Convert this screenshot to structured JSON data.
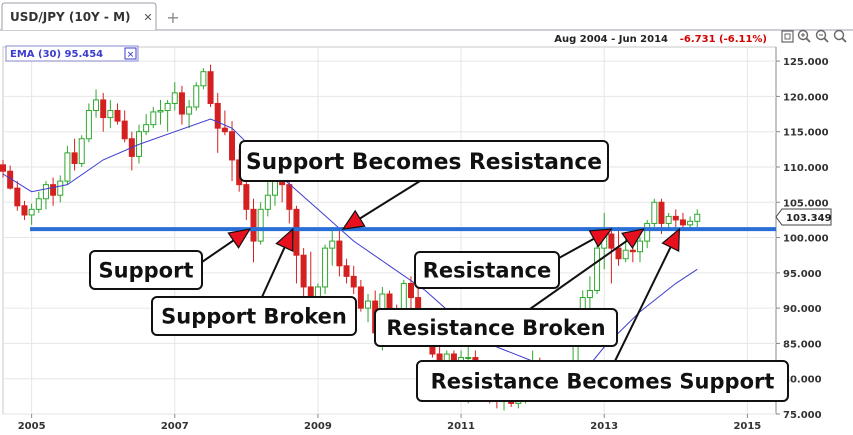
{
  "tab": {
    "label": "USD/JPY (10Y - M)",
    "close_glyph": "✕",
    "add_glyph": "+"
  },
  "header": {
    "range": "Aug 2004 - Jun 2014",
    "change": "-6.731 (-6.11%)"
  },
  "indicator": {
    "label": "EMA (30) 95.454",
    "close_glyph": "✕"
  },
  "toolbar": {
    "icons": [
      "maximize-icon",
      "zoom-in-icon",
      "zoom-out-icon",
      "zoom-reset-icon"
    ]
  },
  "colors": {
    "up": "#2ea82e",
    "down": "#d42020",
    "ema": "#3c3cd0",
    "level": "#2a6fd8",
    "arrow": "#e8101e",
    "change": "#d40000"
  },
  "chart_data": {
    "type": "candlestick",
    "x_tick_labels": [
      "2005",
      "2007",
      "2009",
      "2011",
      "2013",
      "2015"
    ],
    "y_tick_labels": [
      "125.000",
      "120.000",
      "115.000",
      "110.000",
      "105.000",
      "100.000",
      "95.000",
      "90.000",
      "85.000",
      "80.000",
      "75.000"
    ],
    "ylim": [
      75,
      127
    ],
    "xlim": [
      2004.6,
      2015.4
    ],
    "last_price": "103.349",
    "support_resistance_level": 101.2,
    "ema_period": 30,
    "ema_value": 95.454,
    "candles": [
      {
        "t": 2004.6,
        "o": 110.3,
        "h": 111.0,
        "l": 108.5,
        "c": 109.4
      },
      {
        "t": 2004.7,
        "o": 109.4,
        "h": 110.2,
        "l": 106.8,
        "c": 107.0
      },
      {
        "t": 2004.8,
        "o": 107.0,
        "h": 108.0,
        "l": 103.8,
        "c": 104.5
      },
      {
        "t": 2004.9,
        "o": 104.5,
        "h": 105.2,
        "l": 102.5,
        "c": 103.2
      },
      {
        "t": 2005.0,
        "o": 103.2,
        "h": 104.8,
        "l": 101.8,
        "c": 104.0
      },
      {
        "t": 2005.1,
        "o": 104.0,
        "h": 106.5,
        "l": 103.5,
        "c": 105.5
      },
      {
        "t": 2005.2,
        "o": 105.5,
        "h": 108.0,
        "l": 104.0,
        "c": 107.5
      },
      {
        "t": 2005.3,
        "o": 107.5,
        "h": 108.5,
        "l": 104.5,
        "c": 106.0
      },
      {
        "t": 2005.4,
        "o": 106.0,
        "h": 108.8,
        "l": 105.0,
        "c": 108.0
      },
      {
        "t": 2005.5,
        "o": 108.0,
        "h": 113.0,
        "l": 107.5,
        "c": 112.0
      },
      {
        "t": 2005.6,
        "o": 112.0,
        "h": 114.0,
        "l": 109.5,
        "c": 110.5
      },
      {
        "t": 2005.7,
        "o": 110.5,
        "h": 114.5,
        "l": 110.0,
        "c": 114.0
      },
      {
        "t": 2005.8,
        "o": 114.0,
        "h": 119.0,
        "l": 113.5,
        "c": 118.0
      },
      {
        "t": 2005.9,
        "o": 118.0,
        "h": 121.0,
        "l": 117.0,
        "c": 119.5
      },
      {
        "t": 2006.0,
        "o": 119.5,
        "h": 120.5,
        "l": 115.0,
        "c": 117.0
      },
      {
        "t": 2006.1,
        "o": 117.0,
        "h": 119.5,
        "l": 115.5,
        "c": 118.0
      },
      {
        "t": 2006.2,
        "o": 118.0,
        "h": 119.0,
        "l": 116.0,
        "c": 116.5
      },
      {
        "t": 2006.3,
        "o": 116.5,
        "h": 118.0,
        "l": 113.5,
        "c": 114.0
      },
      {
        "t": 2006.4,
        "o": 114.0,
        "h": 115.0,
        "l": 109.5,
        "c": 111.5
      },
      {
        "t": 2006.5,
        "o": 111.5,
        "h": 116.0,
        "l": 110.5,
        "c": 115.0
      },
      {
        "t": 2006.6,
        "o": 115.0,
        "h": 117.5,
        "l": 114.5,
        "c": 116.0
      },
      {
        "t": 2006.7,
        "o": 116.0,
        "h": 118.5,
        "l": 115.5,
        "c": 117.8
      },
      {
        "t": 2006.8,
        "o": 117.8,
        "h": 119.5,
        "l": 116.0,
        "c": 118.0
      },
      {
        "t": 2006.9,
        "o": 118.0,
        "h": 119.5,
        "l": 115.0,
        "c": 119.0
      },
      {
        "t": 2007.0,
        "o": 119.0,
        "h": 122.0,
        "l": 118.0,
        "c": 120.5
      },
      {
        "t": 2007.1,
        "o": 120.5,
        "h": 121.5,
        "l": 116.0,
        "c": 117.5
      },
      {
        "t": 2007.2,
        "o": 117.5,
        "h": 119.5,
        "l": 115.5,
        "c": 118.5
      },
      {
        "t": 2007.3,
        "o": 118.5,
        "h": 122.0,
        "l": 118.0,
        "c": 121.5
      },
      {
        "t": 2007.4,
        "o": 121.5,
        "h": 124.0,
        "l": 121.0,
        "c": 123.5
      },
      {
        "t": 2007.5,
        "o": 123.5,
        "h": 124.5,
        "l": 118.5,
        "c": 119.0
      },
      {
        "t": 2007.6,
        "o": 119.0,
        "h": 120.5,
        "l": 112.0,
        "c": 115.5
      },
      {
        "t": 2007.7,
        "o": 115.5,
        "h": 118.0,
        "l": 114.5,
        "c": 115.0
      },
      {
        "t": 2007.8,
        "o": 115.0,
        "h": 116.5,
        "l": 108.0,
        "c": 111.0
      },
      {
        "t": 2007.9,
        "o": 111.0,
        "h": 112.5,
        "l": 106.5,
        "c": 107.5
      },
      {
        "t": 2008.0,
        "o": 107.5,
        "h": 108.5,
        "l": 102.5,
        "c": 104.0
      },
      {
        "t": 2008.1,
        "o": 104.0,
        "h": 105.5,
        "l": 96.5,
        "c": 99.5
      },
      {
        "t": 2008.2,
        "o": 99.5,
        "h": 105.0,
        "l": 99.0,
        "c": 104.0
      },
      {
        "t": 2008.3,
        "o": 104.0,
        "h": 108.5,
        "l": 103.0,
        "c": 106.0
      },
      {
        "t": 2008.4,
        "o": 106.0,
        "h": 108.5,
        "l": 104.5,
        "c": 108.0
      },
      {
        "t": 2008.5,
        "o": 108.0,
        "h": 110.5,
        "l": 105.0,
        "c": 107.5
      },
      {
        "t": 2008.6,
        "o": 107.5,
        "h": 108.5,
        "l": 102.0,
        "c": 104.0
      },
      {
        "t": 2008.7,
        "o": 104.0,
        "h": 104.5,
        "l": 93.5,
        "c": 97.5
      },
      {
        "t": 2008.8,
        "o": 97.5,
        "h": 98.5,
        "l": 87.0,
        "c": 93.0
      },
      {
        "t": 2008.9,
        "o": 93.0,
        "h": 98.0,
        "l": 89.5,
        "c": 90.8
      },
      {
        "t": 2009.0,
        "o": 90.8,
        "h": 93.5,
        "l": 87.5,
        "c": 93.0
      },
      {
        "t": 2009.1,
        "o": 93.0,
        "h": 99.0,
        "l": 92.0,
        "c": 98.5
      },
      {
        "t": 2009.2,
        "o": 98.5,
        "h": 101.5,
        "l": 96.0,
        "c": 99.5
      },
      {
        "t": 2009.3,
        "o": 99.5,
        "h": 101.0,
        "l": 94.5,
        "c": 96.0
      },
      {
        "t": 2009.4,
        "o": 96.0,
        "h": 97.0,
        "l": 93.5,
        "c": 94.5
      },
      {
        "t": 2009.5,
        "o": 94.5,
        "h": 96.0,
        "l": 92.0,
        "c": 93.0
      },
      {
        "t": 2009.6,
        "o": 93.0,
        "h": 94.0,
        "l": 89.5,
        "c": 90.0
      },
      {
        "t": 2009.7,
        "o": 90.0,
        "h": 92.0,
        "l": 88.0,
        "c": 91.0
      },
      {
        "t": 2009.8,
        "o": 91.0,
        "h": 92.5,
        "l": 86.0,
        "c": 86.5
      },
      {
        "t": 2009.9,
        "o": 86.5,
        "h": 93.0,
        "l": 84.0,
        "c": 92.0
      },
      {
        "t": 2010.0,
        "o": 92.0,
        "h": 92.5,
        "l": 88.0,
        "c": 89.5
      },
      {
        "t": 2010.1,
        "o": 89.5,
        "h": 90.5,
        "l": 88.0,
        "c": 89.0
      },
      {
        "t": 2010.2,
        "o": 89.0,
        "h": 94.0,
        "l": 88.5,
        "c": 93.5
      },
      {
        "t": 2010.3,
        "o": 93.5,
        "h": 94.5,
        "l": 89.0,
        "c": 91.5
      },
      {
        "t": 2010.4,
        "o": 91.5,
        "h": 93.5,
        "l": 87.5,
        "c": 88.5
      },
      {
        "t": 2010.5,
        "o": 88.5,
        "h": 89.0,
        "l": 84.5,
        "c": 85.5
      },
      {
        "t": 2010.6,
        "o": 85.5,
        "h": 86.5,
        "l": 83.0,
        "c": 83.5
      },
      {
        "t": 2010.7,
        "o": 83.5,
        "h": 84.5,
        "l": 81.5,
        "c": 82.0
      },
      {
        "t": 2010.8,
        "o": 82.0,
        "h": 84.0,
        "l": 80.5,
        "c": 83.5
      },
      {
        "t": 2010.9,
        "o": 83.5,
        "h": 84.0,
        "l": 81.5,
        "c": 82.5
      },
      {
        "t": 2011.0,
        "o": 82.5,
        "h": 84.0,
        "l": 81.0,
        "c": 83.0
      },
      {
        "t": 2011.1,
        "o": 83.0,
        "h": 85.5,
        "l": 76.5,
        "c": 83.0
      },
      {
        "t": 2011.2,
        "o": 83.0,
        "h": 84.0,
        "l": 80.5,
        "c": 81.5
      },
      {
        "t": 2011.3,
        "o": 81.5,
        "h": 82.0,
        "l": 79.5,
        "c": 80.5
      },
      {
        "t": 2011.4,
        "o": 80.5,
        "h": 81.0,
        "l": 76.5,
        "c": 77.0
      },
      {
        "t": 2011.5,
        "o": 77.0,
        "h": 78.0,
        "l": 75.8,
        "c": 76.8
      },
      {
        "t": 2011.6,
        "o": 76.8,
        "h": 78.5,
        "l": 75.5,
        "c": 77.5
      },
      {
        "t": 2011.7,
        "o": 77.5,
        "h": 78.5,
        "l": 76.0,
        "c": 76.5
      },
      {
        "t": 2011.8,
        "o": 76.5,
        "h": 77.5,
        "l": 75.8,
        "c": 77.0
      },
      {
        "t": 2011.9,
        "o": 77.0,
        "h": 81.5,
        "l": 76.5,
        "c": 81.0
      },
      {
        "t": 2012.0,
        "o": 81.0,
        "h": 84.0,
        "l": 80.0,
        "c": 82.5
      },
      {
        "t": 2012.1,
        "o": 82.5,
        "h": 83.0,
        "l": 79.5,
        "c": 80.0
      },
      {
        "t": 2012.2,
        "o": 80.0,
        "h": 80.5,
        "l": 77.5,
        "c": 78.5
      },
      {
        "t": 2012.3,
        "o": 78.5,
        "h": 80.0,
        "l": 77.0,
        "c": 78.0
      },
      {
        "t": 2012.4,
        "o": 78.0,
        "h": 80.0,
        "l": 77.5,
        "c": 79.5
      },
      {
        "t": 2012.5,
        "o": 79.5,
        "h": 82.5,
        "l": 79.0,
        "c": 82.0
      },
      {
        "t": 2012.6,
        "o": 82.0,
        "h": 86.5,
        "l": 81.5,
        "c": 86.5
      },
      {
        "t": 2012.7,
        "o": 86.5,
        "h": 92.5,
        "l": 86.0,
        "c": 91.5
      },
      {
        "t": 2012.8,
        "o": 91.5,
        "h": 94.5,
        "l": 90.0,
        "c": 92.5
      },
      {
        "t": 2012.9,
        "o": 92.5,
        "h": 99.5,
        "l": 92.0,
        "c": 98.5
      },
      {
        "t": 2013.0,
        "o": 98.5,
        "h": 103.5,
        "l": 95.5,
        "c": 100.5
      },
      {
        "t": 2013.1,
        "o": 100.5,
        "h": 101.5,
        "l": 93.5,
        "c": 98.5
      },
      {
        "t": 2013.2,
        "o": 98.5,
        "h": 101.5,
        "l": 96.0,
        "c": 97.0
      },
      {
        "t": 2013.3,
        "o": 97.0,
        "h": 100.5,
        "l": 96.5,
        "c": 98.2
      },
      {
        "t": 2013.4,
        "o": 98.2,
        "h": 101.0,
        "l": 96.5,
        "c": 98.0
      },
      {
        "t": 2013.5,
        "o": 98.0,
        "h": 100.0,
        "l": 96.5,
        "c": 99.5
      },
      {
        "t": 2013.6,
        "o": 99.5,
        "h": 102.5,
        "l": 98.5,
        "c": 102.0
      },
      {
        "t": 2013.7,
        "o": 102.0,
        "h": 105.5,
        "l": 101.5,
        "c": 105.0
      },
      {
        "t": 2013.8,
        "o": 105.0,
        "h": 105.5,
        "l": 100.5,
        "c": 102.0
      },
      {
        "t": 2013.9,
        "o": 102.0,
        "h": 103.5,
        "l": 101.0,
        "c": 103.0
      },
      {
        "t": 2014.0,
        "o": 103.0,
        "h": 104.0,
        "l": 101.5,
        "c": 102.5
      },
      {
        "t": 2014.1,
        "o": 102.5,
        "h": 103.5,
        "l": 101.0,
        "c": 101.8
      },
      {
        "t": 2014.2,
        "o": 101.8,
        "h": 103.0,
        "l": 101.0,
        "c": 102.3
      },
      {
        "t": 2014.3,
        "o": 102.3,
        "h": 104.0,
        "l": 101.5,
        "c": 103.3
      }
    ],
    "ema": [
      {
        "t": 2004.6,
        "v": 109.0
      },
      {
        "t": 2005.0,
        "v": 106.5
      },
      {
        "t": 2005.5,
        "v": 107.5
      },
      {
        "t": 2006.0,
        "v": 111.0
      },
      {
        "t": 2006.5,
        "v": 113.2
      },
      {
        "t": 2007.0,
        "v": 115.0
      },
      {
        "t": 2007.5,
        "v": 116.8
      },
      {
        "t": 2007.8,
        "v": 115.5
      },
      {
        "t": 2008.0,
        "v": 113.5
      },
      {
        "t": 2008.5,
        "v": 108.5
      },
      {
        "t": 2009.0,
        "v": 104.0
      },
      {
        "t": 2009.5,
        "v": 99.5
      },
      {
        "t": 2010.0,
        "v": 96.0
      },
      {
        "t": 2010.5,
        "v": 92.5
      },
      {
        "t": 2011.0,
        "v": 88.0
      },
      {
        "t": 2011.5,
        "v": 84.5
      },
      {
        "t": 2012.0,
        "v": 82.5
      },
      {
        "t": 2012.5,
        "v": 80.5
      },
      {
        "t": 2012.8,
        "v": 82.0
      },
      {
        "t": 2013.0,
        "v": 84.5
      },
      {
        "t": 2013.5,
        "v": 89.5
      },
      {
        "t": 2014.0,
        "v": 93.5
      },
      {
        "t": 2014.3,
        "v": 95.5
      }
    ],
    "annotations": [
      {
        "text": "Support Becomes Resistance",
        "targets": [
          {
            "t": 2009.35,
            "v": 101.2
          }
        ]
      },
      {
        "text": "Support",
        "targets": [
          {
            "t": 2008.05,
            "v": 101.2
          }
        ]
      },
      {
        "text": "Support Broken",
        "targets": [
          {
            "t": 2008.65,
            "v": 101.2
          }
        ]
      },
      {
        "text": "Resistance",
        "targets": [
          {
            "t": 2013.1,
            "v": 101.2
          }
        ]
      },
      {
        "text": "Resistance Broken",
        "targets": [
          {
            "t": 2013.55,
            "v": 101.2
          }
        ]
      },
      {
        "text": "Resistance Becomes Support",
        "targets": [
          {
            "t": 2014.05,
            "v": 101.2
          }
        ]
      }
    ]
  }
}
